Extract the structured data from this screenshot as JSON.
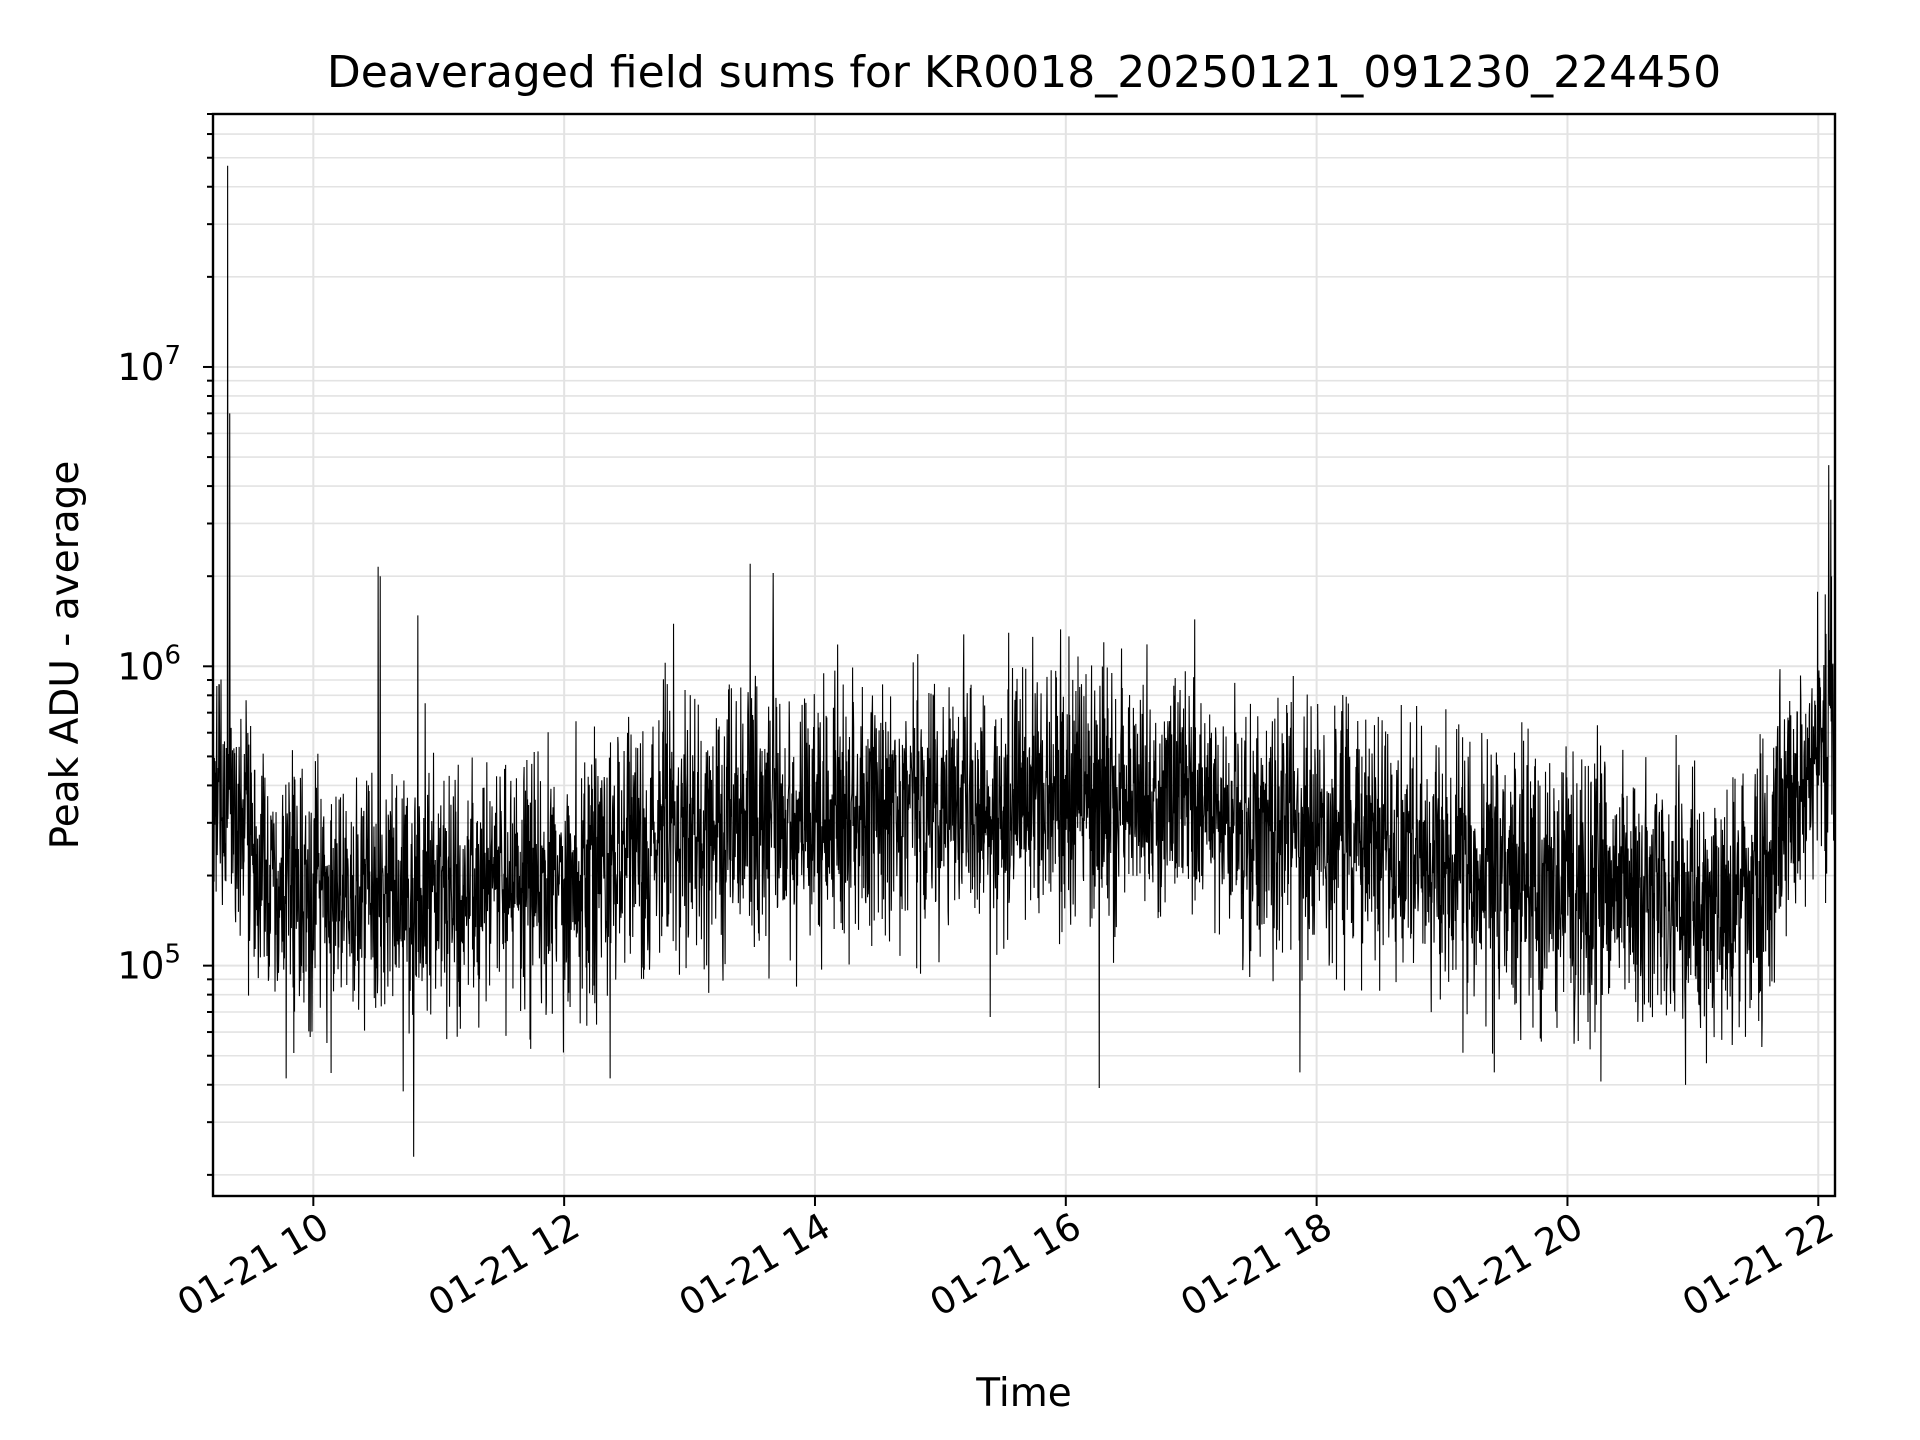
{
  "chart_data": {
    "type": "line",
    "title": "Deaveraged field sums for KR0018_20250121_091230_224450",
    "xlabel": "Time",
    "ylabel": "Peak ADU - average",
    "yscale": "log",
    "ylim": [
      17000,
      70000000
    ],
    "xlim": [
      "2025-01-21 09:12",
      "2025-01-21 22:08"
    ],
    "grid": true,
    "line_color": "#000000",
    "x_ticks": [
      {
        "value": "2025-01-21 10:00",
        "label": "01-21 10"
      },
      {
        "value": "2025-01-21 12:00",
        "label": "01-21 12"
      },
      {
        "value": "2025-01-21 14:00",
        "label": "01-21 14"
      },
      {
        "value": "2025-01-21 16:00",
        "label": "01-21 16"
      },
      {
        "value": "2025-01-21 18:00",
        "label": "01-21 18"
      },
      {
        "value": "2025-01-21 20:00",
        "label": "01-21 20"
      },
      {
        "value": "2025-01-21 22:00",
        "label": "01-21 22"
      }
    ],
    "y_ticks": [
      {
        "value": 100000,
        "base": "10",
        "exp": "5"
      },
      {
        "value": 1000000,
        "base": "10",
        "exp": "6"
      },
      {
        "value": 10000000,
        "base": "10",
        "exp": "7"
      }
    ],
    "baseline": [
      {
        "t": "2025-01-21 09:12",
        "y": 420000
      },
      {
        "t": "2025-01-21 09:30",
        "y": 230000
      },
      {
        "t": "2025-01-21 10:00",
        "y": 165000
      },
      {
        "t": "2025-01-21 10:30",
        "y": 175000
      },
      {
        "t": "2025-01-21 11:00",
        "y": 170000
      },
      {
        "t": "2025-01-21 11:30",
        "y": 180000
      },
      {
        "t": "2025-01-21 12:00",
        "y": 200000
      },
      {
        "t": "2025-01-21 12:30",
        "y": 240000
      },
      {
        "t": "2025-01-21 13:00",
        "y": 280000
      },
      {
        "t": "2025-01-21 13:30",
        "y": 300000
      },
      {
        "t": "2025-01-21 14:00",
        "y": 310000
      },
      {
        "t": "2025-01-21 15:00",
        "y": 345000
      },
      {
        "t": "2025-01-21 16:00",
        "y": 370000
      },
      {
        "t": "2025-01-21 17:00",
        "y": 360000
      },
      {
        "t": "2025-01-21 18:00",
        "y": 290000
      },
      {
        "t": "2025-01-21 19:00",
        "y": 215000
      },
      {
        "t": "2025-01-21 20:00",
        "y": 180000
      },
      {
        "t": "2025-01-21 20:30",
        "y": 190000
      },
      {
        "t": "2025-01-21 21:00",
        "y": 150000
      },
      {
        "t": "2025-01-21 21:30",
        "y": 165000
      },
      {
        "t": "2025-01-21 21:45",
        "y": 350000
      },
      {
        "t": "2025-01-21 22:08",
        "y": 620000
      }
    ],
    "spikes": [
      {
        "t": "2025-01-21 09:19",
        "y": 47000000
      },
      {
        "t": "2025-01-21 09:20",
        "y": 7000000
      },
      {
        "t": "2025-01-21 10:31",
        "y": 2150000
      },
      {
        "t": "2025-01-21 10:32",
        "y": 2000000
      },
      {
        "t": "2025-01-21 10:50",
        "y": 1480000
      },
      {
        "t": "2025-01-21 13:29",
        "y": 2200000
      },
      {
        "t": "2025-01-21 13:40",
        "y": 2050000
      },
      {
        "t": "2025-01-21 22:05",
        "y": 4700000
      },
      {
        "t": "2025-01-21 22:06",
        "y": 3600000
      }
    ],
    "dips": [
      {
        "t": "2025-01-21 10:48",
        "y": 23000
      },
      {
        "t": "2025-01-21 10:43",
        "y": 38000
      },
      {
        "t": "2025-01-21 16:16",
        "y": 39000
      },
      {
        "t": "2025-01-21 09:47",
        "y": 42000
      },
      {
        "t": "2025-01-21 12:22",
        "y": 42000
      },
      {
        "t": "2025-01-21 20:16",
        "y": 41000
      },
      {
        "t": "2025-01-21 17:52",
        "y": 44000
      },
      {
        "t": "2025-01-21 19:25",
        "y": 44000
      }
    ]
  }
}
